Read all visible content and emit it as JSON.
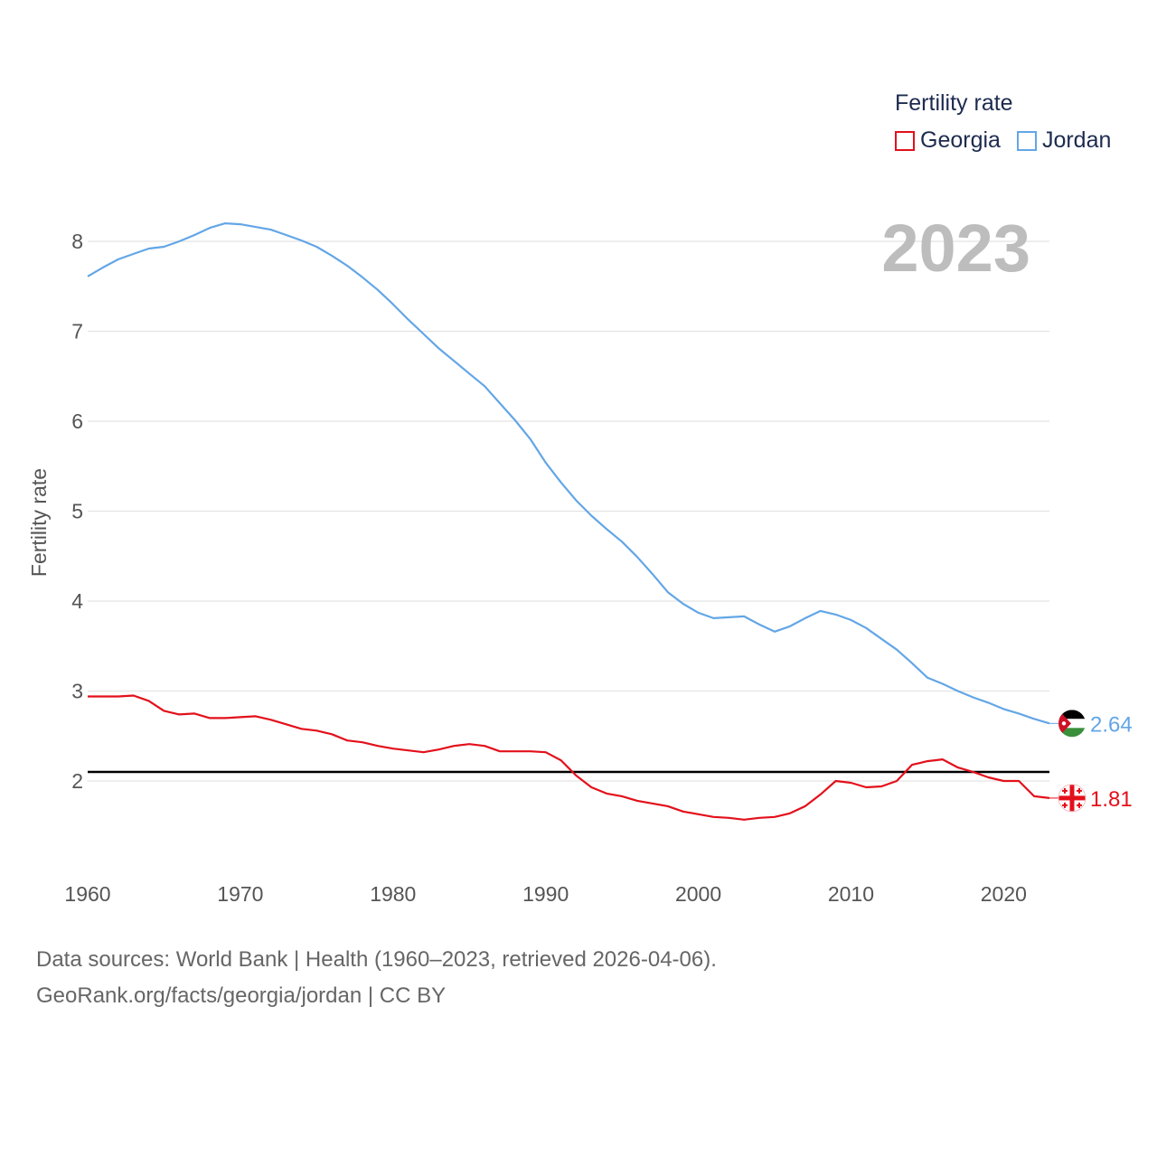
{
  "legend": {
    "title": "Fertility rate",
    "items": [
      {
        "label": "Georgia",
        "color": "#e3101b"
      },
      {
        "label": "Jordan",
        "color": "#63a6e6"
      }
    ]
  },
  "year_stamp": "2023",
  "footer": {
    "line1": "Data sources: World Bank | Health (1960–2023, retrieved 2026-04-06).",
    "line2": "GeoRank.org/facts/georgia/jordan | CC BY"
  },
  "chart_data": {
    "type": "line",
    "title": "Fertility rate",
    "xlabel": "",
    "ylabel": "Fertility rate",
    "xlim": [
      1960,
      2023
    ],
    "ylim": [
      1.0,
      8.6
    ],
    "xticks": [
      1960,
      1970,
      1980,
      1990,
      2000,
      2010,
      2020
    ],
    "yticks": [
      2,
      3,
      4,
      5,
      6,
      7,
      8
    ],
    "reference_line": {
      "value": 2.1,
      "color": "#000000"
    },
    "x": [
      1960,
      1961,
      1962,
      1963,
      1964,
      1965,
      1966,
      1967,
      1968,
      1969,
      1970,
      1971,
      1972,
      1973,
      1974,
      1975,
      1976,
      1977,
      1978,
      1979,
      1980,
      1981,
      1982,
      1983,
      1984,
      1985,
      1986,
      1987,
      1988,
      1989,
      1990,
      1991,
      1992,
      1993,
      1994,
      1995,
      1996,
      1997,
      1998,
      1999,
      2000,
      2001,
      2002,
      2003,
      2004,
      2005,
      2006,
      2007,
      2008,
      2009,
      2010,
      2011,
      2012,
      2013,
      2014,
      2015,
      2016,
      2017,
      2018,
      2019,
      2020,
      2021,
      2022,
      2023
    ],
    "series": [
      {
        "name": "Georgia",
        "color": "#e3101b",
        "end_label": "1.81",
        "flag": "georgia-flag-icon",
        "values": [
          2.94,
          2.94,
          2.94,
          2.95,
          2.89,
          2.78,
          2.74,
          2.75,
          2.7,
          2.7,
          2.71,
          2.72,
          2.68,
          2.63,
          2.58,
          2.56,
          2.52,
          2.45,
          2.43,
          2.39,
          2.36,
          2.34,
          2.32,
          2.35,
          2.39,
          2.41,
          2.39,
          2.33,
          2.33,
          2.33,
          2.32,
          2.23,
          2.06,
          1.93,
          1.86,
          1.83,
          1.78,
          1.75,
          1.72,
          1.66,
          1.63,
          1.6,
          1.59,
          1.57,
          1.59,
          1.6,
          1.64,
          1.72,
          1.85,
          2.0,
          1.98,
          1.93,
          1.94,
          2.0,
          2.18,
          2.22,
          2.24,
          2.15,
          2.1,
          2.04,
          2.0,
          2.0,
          1.83,
          1.81
        ]
      },
      {
        "name": "Jordan",
        "color": "#63a6e6",
        "end_label": "2.64",
        "flag": "jordan-flag-icon",
        "values": [
          7.61,
          7.71,
          7.8,
          7.86,
          7.92,
          7.94,
          8.0,
          8.07,
          8.15,
          8.2,
          8.19,
          8.16,
          8.13,
          8.07,
          8.01,
          7.94,
          7.84,
          7.73,
          7.6,
          7.46,
          7.3,
          7.13,
          6.97,
          6.81,
          6.67,
          6.53,
          6.39,
          6.2,
          6.01,
          5.8,
          5.54,
          5.32,
          5.12,
          4.95,
          4.8,
          4.66,
          4.49,
          4.3,
          4.1,
          3.97,
          3.87,
          3.81,
          3.82,
          3.83,
          3.74,
          3.66,
          3.72,
          3.81,
          3.89,
          3.85,
          3.79,
          3.7,
          3.58,
          3.46,
          3.31,
          3.15,
          3.08,
          3.0,
          2.93,
          2.87,
          2.8,
          2.75,
          2.69,
          2.64
        ]
      }
    ]
  }
}
